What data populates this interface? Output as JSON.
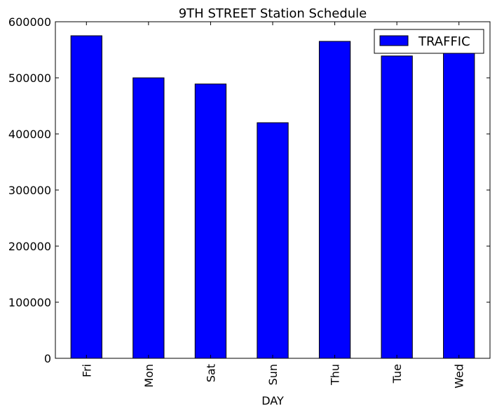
{
  "chart_data": {
    "type": "bar",
    "title": "9TH STREET Station Schedule",
    "xlabel": "DAY",
    "ylabel": "",
    "categories": [
      "Fri",
      "Mon",
      "Sat",
      "Sun",
      "Thu",
      "Tue",
      "Wed"
    ],
    "series": [
      {
        "name": "TRAFFIC",
        "color": "#0000ff",
        "values": [
          575000,
          500000,
          489000,
          420000,
          565000,
          539000,
          545000
        ]
      }
    ],
    "ylim": [
      0,
      600000
    ],
    "yticks": [
      "0",
      "100000",
      "200000",
      "300000",
      "400000",
      "500000",
      "600000"
    ],
    "legend_position": "top-right",
    "grid": false
  }
}
